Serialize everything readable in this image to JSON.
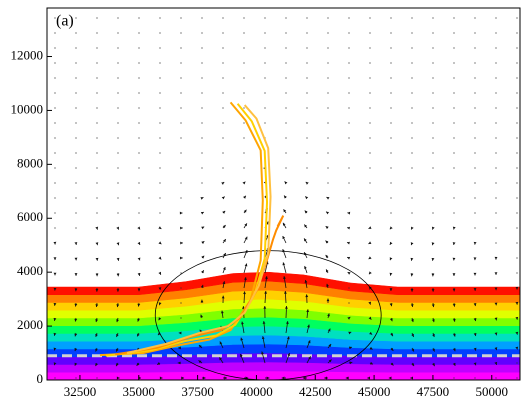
{
  "chart_data": {
    "type": "line",
    "annotation": "(a)",
    "xlim": [
      31100,
      51200
    ],
    "ylim": [
      0,
      13800
    ],
    "xticks": [
      32500,
      35000,
      37500,
      40000,
      42500,
      45000,
      47500,
      50000
    ],
    "yticks": [
      0,
      2000,
      4000,
      6000,
      8000,
      10000,
      12000
    ],
    "field": {
      "colors": [
        "#ff00ff",
        "#c000ff",
        "#6000ff",
        "#0040ff",
        "#00a0ff",
        "#00e0c0",
        "#00ff60",
        "#80ff00",
        "#e0ff00",
        "#ffd000",
        "#ff8000",
        "#ff1000"
      ],
      "x": [
        31100,
        35000,
        37000,
        39000,
        40500,
        42000,
        44000,
        46000,
        51200
      ],
      "top": [
        3450,
        3450,
        3650,
        3950,
        4000,
        3900,
        3600,
        3450,
        3450
      ]
    },
    "dashed_line": {
      "value": 900,
      "color": "#d0d0d0"
    },
    "ellipse": {
      "cx": 40500,
      "cy": 2400,
      "rx": 4800,
      "ry": 2400
    },
    "series": [
      {
        "color": "#ffa500",
        "x": [
          33350,
          35200,
          36750,
          38000,
          38900,
          39750,
          40180,
          40270,
          40180,
          39540,
          38900
        ],
        "y": [
          925,
          1000,
          1300,
          1500,
          1850,
          2960,
          4440,
          6660,
          8520,
          9630,
          10300
        ]
      },
      {
        "color": "#ffd000",
        "x": [
          33600,
          35500,
          37000,
          38300,
          39100,
          39900,
          40350,
          40450,
          40350,
          39800,
          39200
        ],
        "y": [
          900,
          1100,
          1450,
          1650,
          2050,
          3100,
          4500,
          6600,
          8500,
          9600,
          10250
        ]
      },
      {
        "color": "#ff8c00",
        "x": [
          34000,
          35800,
          37200,
          38500,
          39300,
          40000,
          40400,
          40700,
          40840,
          41140,
          40900
        ],
        "y": [
          950,
          1200,
          1600,
          1850,
          2300,
          3300,
          4300,
          5200,
          5550,
          6100,
          5700
        ]
      },
      {
        "color": "#ffc040",
        "x": [
          34500,
          36200,
          37600,
          38800,
          39500,
          40100,
          40500,
          40600,
          40500,
          40000,
          39500
        ],
        "y": [
          1000,
          1350,
          1750,
          2000,
          2500,
          3500,
          4700,
          6800,
          8600,
          9700,
          10200
        ]
      }
    ]
  }
}
